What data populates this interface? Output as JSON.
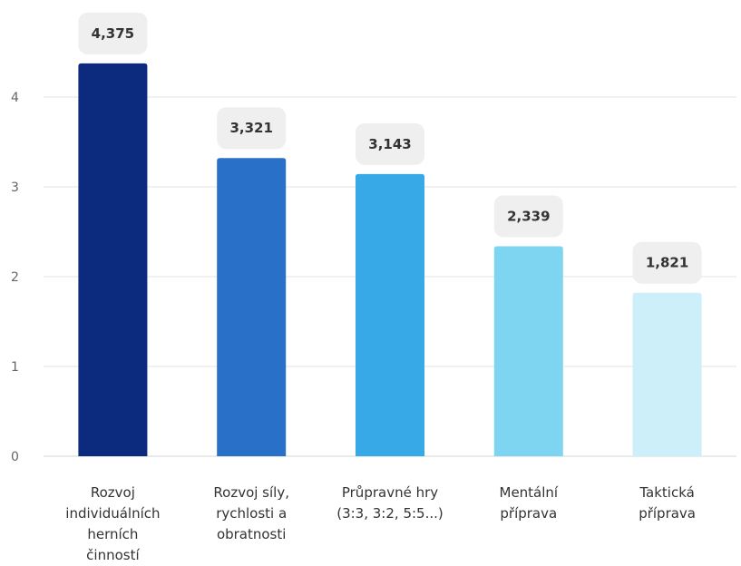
{
  "chart_data": {
    "type": "bar",
    "title": "",
    "xlabel": "",
    "ylabel": "",
    "ylim": [
      0,
      4.5
    ],
    "yticks": [
      "0",
      "1",
      "2",
      "3",
      "4"
    ],
    "grid": true,
    "categories": [
      [
        "Rozvoj",
        "individuálních",
        "herních",
        "činností"
      ],
      [
        "Rozvoj síly,",
        "rychlosti a",
        "obratnosti"
      ],
      [
        "Průpravné hry",
        "(3:3, 3:2, 5:5...)"
      ],
      [
        "Mentální",
        "příprava"
      ],
      [
        "Taktická",
        "příprava"
      ]
    ],
    "values": [
      4.375,
      3.321,
      3.143,
      2.339,
      1.821
    ],
    "value_labels": [
      "4,375",
      "3,321",
      "3,143",
      "2,339",
      "1,821"
    ],
    "colors": [
      "#0d2b7e",
      "#2870c8",
      "#36a9e6",
      "#7ed5f2",
      "#cdeffa"
    ]
  }
}
